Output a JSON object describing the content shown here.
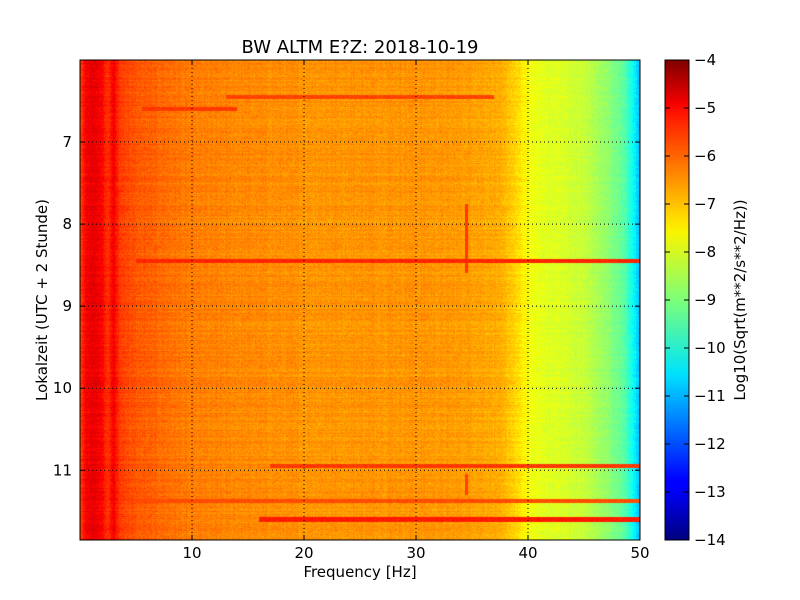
{
  "chart_data": {
    "type": "heatmap",
    "title": "BW ALTM E?Z: 2018-10-19",
    "xlabel": "Frequency [Hz]",
    "ylabel": "Lokalzeit (UTC + 2 Stunde)",
    "xlim": [
      0,
      50
    ],
    "ylim": [
      11.85,
      6.0
    ],
    "y_inverted": true,
    "grid": true,
    "x_ticks": [
      10,
      20,
      30,
      40,
      50
    ],
    "x_tick_labels": [
      "10",
      "20",
      "30",
      "40",
      "50"
    ],
    "y_ticks": [
      7,
      8,
      9,
      10,
      11
    ],
    "y_tick_labels": [
      "7",
      "8",
      "9",
      "10",
      "11"
    ],
    "colormap": "jet",
    "colorbar": {
      "label": "Log10(Sqrt(m**2/s**2/Hz))",
      "range": [
        -14,
        -4
      ],
      "ticks": [
        -4,
        -5,
        -6,
        -7,
        -8,
        -9,
        -10,
        -11,
        -12,
        -13,
        -14
      ],
      "tick_labels": [
        "−4",
        "−5",
        "−6",
        "−7",
        "−8",
        "−9",
        "−10",
        "−11",
        "−12",
        "−13",
        "−14"
      ]
    },
    "frequency_profile": {
      "frequency_hz": [
        0,
        0.5,
        1,
        2,
        2.5,
        3,
        3.5,
        5,
        10,
        15,
        20,
        25,
        30,
        35,
        37,
        38.5,
        40,
        41,
        43,
        45,
        47,
        48.5,
        49.5,
        50
      ],
      "log10_amplitude": [
        -6.0,
        -5.2,
        -5.0,
        -5.2,
        -5.8,
        -5.1,
        -5.8,
        -6.1,
        -6.5,
        -6.6,
        -6.7,
        -6.7,
        -6.7,
        -6.8,
        -6.9,
        -7.2,
        -7.8,
        -8.0,
        -8.1,
        -8.3,
        -8.8,
        -9.3,
        -10.3,
        -11.0
      ]
    },
    "horizontal_features": [
      {
        "time": 6.45,
        "freq_range": [
          13,
          37
        ],
        "log10_amplitude": -5.9
      },
      {
        "time": 6.6,
        "freq_range": [
          5.5,
          14
        ],
        "log10_amplitude": -5.8
      },
      {
        "time": 8.45,
        "freq_range": [
          5,
          50
        ],
        "log10_amplitude": -5.6
      },
      {
        "time": 10.95,
        "freq_range": [
          17,
          50
        ],
        "log10_amplitude": -5.8
      },
      {
        "time": 11.38,
        "freq_range": [
          5,
          50
        ],
        "log10_amplitude": -6.0
      },
      {
        "time": 11.6,
        "freq_range": [
          16,
          50
        ],
        "log10_amplitude": -5.5
      }
    ],
    "vertical_features": [
      {
        "frequency": 34.5,
        "time_range": [
          7.75,
          8.6
        ],
        "log10_amplitude": -5.8
      },
      {
        "frequency": 34.5,
        "time_range": [
          11.05,
          11.3
        ],
        "log10_amplitude": -5.9
      }
    ]
  }
}
